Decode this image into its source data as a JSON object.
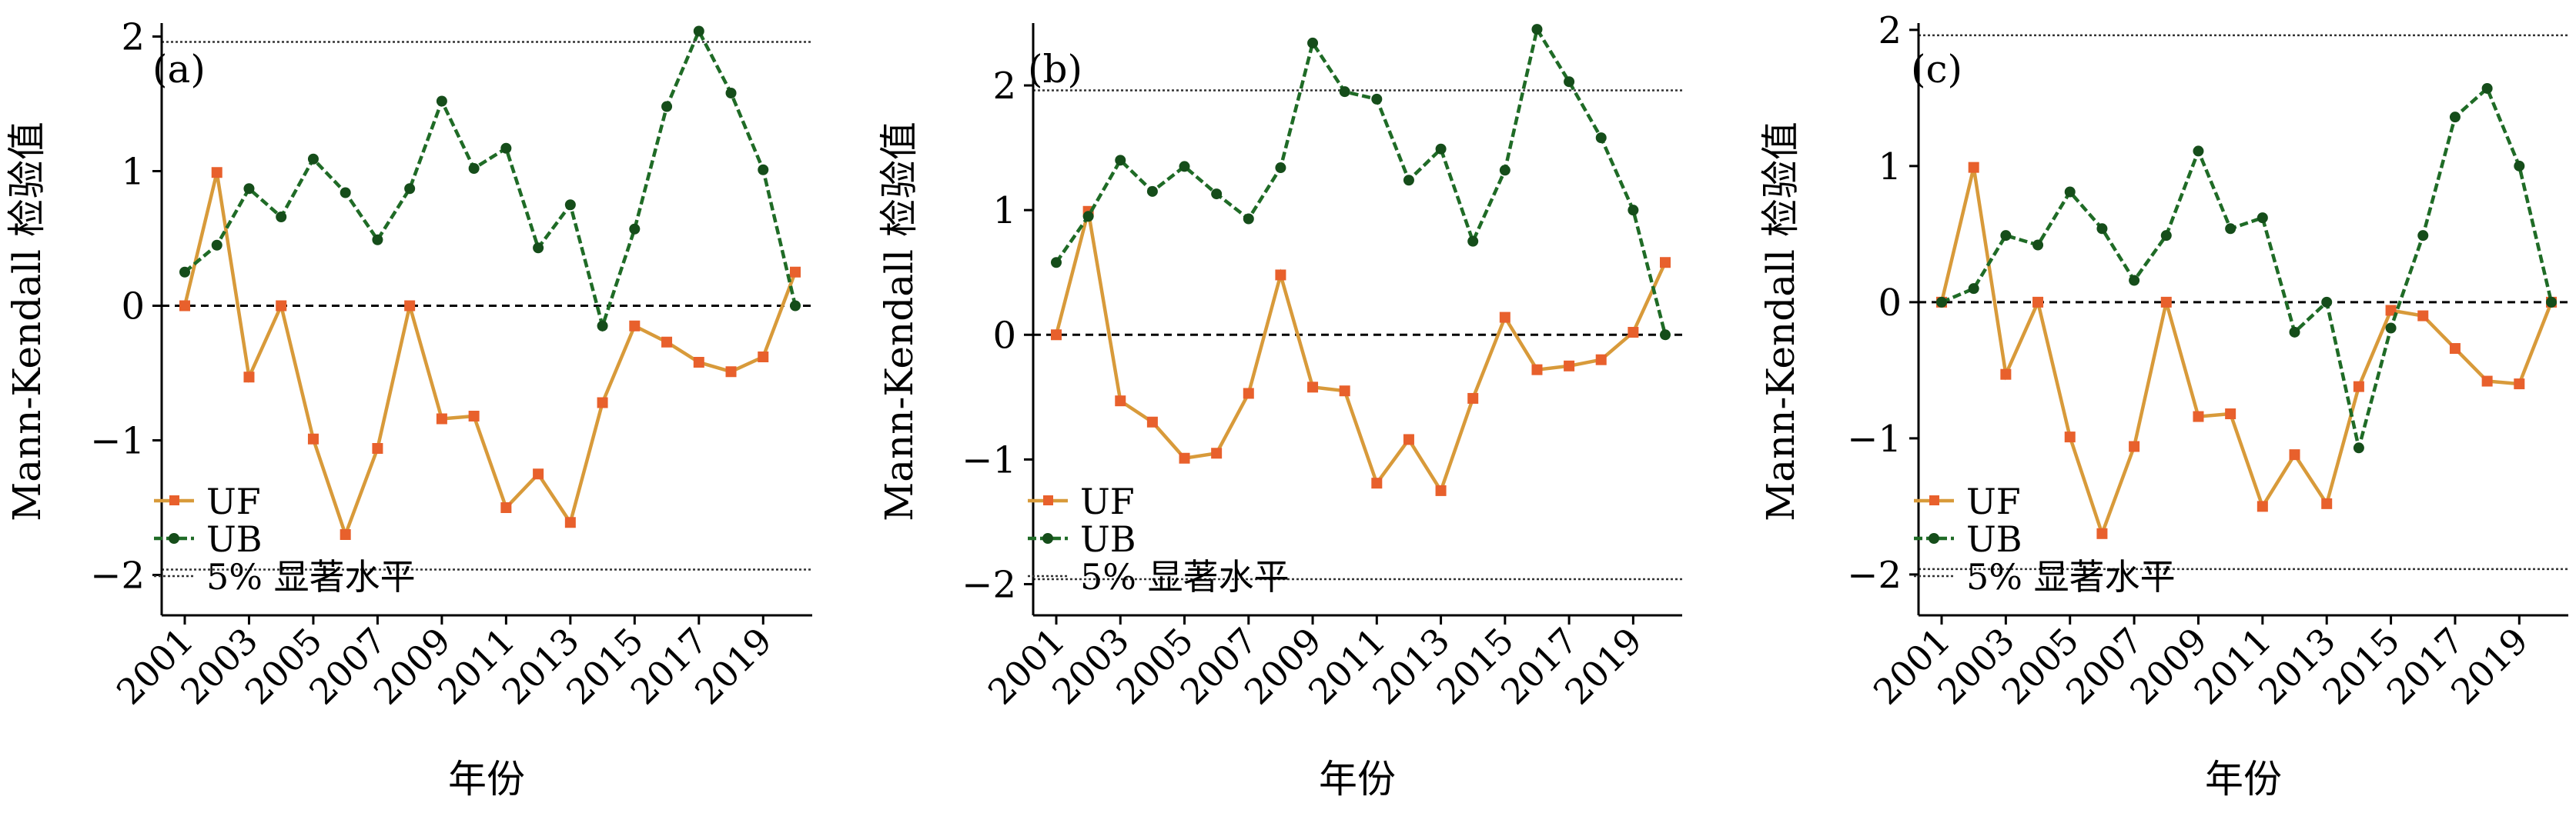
{
  "chart_data": [
    {
      "type": "line",
      "panel_label": "(a)",
      "ylabel": "Mann-Kendall 检验值",
      "xlabel": "年份",
      "x": [
        2001,
        2002,
        2003,
        2004,
        2005,
        2006,
        2007,
        2008,
        2009,
        2010,
        2011,
        2012,
        2013,
        2014,
        2015,
        2016,
        2017,
        2018,
        2019,
        2020
      ],
      "x_tick_labels": [
        "2001",
        "2003",
        "2005",
        "2007",
        "2009",
        "2011",
        "2013",
        "2015",
        "2017",
        "2019"
      ],
      "y_ticks": [
        2,
        1,
        0,
        -1,
        -2
      ],
      "y_tick_labels": [
        "2",
        "1",
        "0",
        "−1",
        "−2"
      ],
      "ylim": [
        -2.3,
        2.1
      ],
      "significance_level": 1.96,
      "series": [
        {
          "name": "UF",
          "color": "#e8602c",
          "marker": "square",
          "values": [
            0.0,
            0.99,
            -0.53,
            0.0,
            -0.99,
            -1.7,
            -1.06,
            0.0,
            -0.84,
            -0.82,
            -1.5,
            -1.25,
            -1.61,
            -0.72,
            -0.15,
            -0.27,
            -0.42,
            -0.49,
            -0.38,
            0.25
          ]
        },
        {
          "name": "UB",
          "color": "#1f6b26",
          "marker": "circle",
          "values": [
            0.25,
            0.45,
            0.87,
            0.66,
            1.09,
            0.84,
            0.49,
            0.87,
            1.52,
            1.02,
            1.17,
            0.43,
            0.75,
            -0.15,
            0.57,
            1.48,
            2.04,
            1.58,
            1.01,
            0.0
          ]
        }
      ],
      "legend": {
        "uf": "UF",
        "ub": "UB",
        "sig": "5% 显著水平"
      },
      "legend_placement": "bottom-left",
      "grid": false
    },
    {
      "type": "line",
      "panel_label": "(b)",
      "ylabel": "Mann-Kendall 检验值",
      "xlabel": "年份",
      "x": [
        2001,
        2002,
        2003,
        2004,
        2005,
        2006,
        2007,
        2008,
        2009,
        2010,
        2011,
        2012,
        2013,
        2014,
        2015,
        2016,
        2017,
        2018,
        2019,
        2020
      ],
      "x_tick_labels": [
        "2001",
        "2003",
        "2005",
        "2007",
        "2009",
        "2011",
        "2013",
        "2015",
        "2017",
        "2019"
      ],
      "y_ticks": [
        2,
        1,
        0,
        -1,
        -2
      ],
      "y_tick_labels": [
        "2",
        "1",
        "0",
        "−1",
        "−2"
      ],
      "ylim": [
        -2.25,
        2.5
      ],
      "significance_level": 1.96,
      "series": [
        {
          "name": "UF",
          "color": "#e8602c",
          "marker": "square",
          "values": [
            0.0,
            0.99,
            -0.53,
            -0.7,
            -0.99,
            -0.95,
            -0.47,
            0.48,
            -0.42,
            -0.45,
            -1.19,
            -0.84,
            -1.25,
            -0.51,
            0.14,
            -0.28,
            -0.25,
            -0.2,
            0.02,
            0.58
          ]
        },
        {
          "name": "UB",
          "color": "#1f6b26",
          "marker": "circle",
          "values": [
            0.58,
            0.95,
            1.4,
            1.15,
            1.35,
            1.13,
            0.93,
            1.34,
            2.34,
            1.95,
            1.89,
            1.24,
            1.49,
            0.75,
            1.32,
            2.45,
            2.03,
            1.58,
            1.0,
            0.0
          ]
        }
      ],
      "legend": {
        "uf": "UF",
        "ub": "UB",
        "sig": "5% 显著水平"
      },
      "legend_placement": "bottom-left",
      "grid": false
    },
    {
      "type": "line",
      "panel_label": "(c)",
      "ylabel": "Mann-Kendall 检验值",
      "xlabel": "年份",
      "x": [
        2001,
        2002,
        2003,
        2004,
        2005,
        2006,
        2007,
        2008,
        2009,
        2010,
        2011,
        2012,
        2013,
        2014,
        2015,
        2016,
        2017,
        2018,
        2019,
        2020
      ],
      "x_tick_labels": [
        "2001",
        "2003",
        "2005",
        "2007",
        "2009",
        "2011",
        "2013",
        "2015",
        "2017",
        "2019"
      ],
      "y_ticks": [
        2,
        1,
        0,
        -1,
        -2
      ],
      "y_tick_labels": [
        "2",
        "1",
        "0",
        "−1",
        "−2"
      ],
      "ylim": [
        -2.3,
        2.05
      ],
      "significance_level": 1.96,
      "series": [
        {
          "name": "UF",
          "color": "#e8602c",
          "marker": "square",
          "values": [
            0.0,
            0.99,
            -0.53,
            0.0,
            -0.99,
            -1.7,
            -1.06,
            0.0,
            -0.84,
            -0.82,
            -1.5,
            -1.12,
            -1.48,
            -0.62,
            -0.06,
            -0.1,
            -0.34,
            -0.58,
            -0.6,
            0.0
          ]
        },
        {
          "name": "UB",
          "color": "#1f6b26",
          "marker": "circle",
          "values": [
            0.0,
            0.1,
            0.49,
            0.42,
            0.81,
            0.54,
            0.16,
            0.49,
            1.11,
            0.54,
            0.62,
            -0.22,
            0.0,
            -1.07,
            -0.19,
            0.49,
            1.36,
            1.57,
            1.0,
            0.0
          ]
        }
      ],
      "legend": {
        "uf": "UF",
        "ub": "UB",
        "sig": "5% 显著水平"
      },
      "legend_placement": "bottom-left",
      "grid": false
    }
  ]
}
